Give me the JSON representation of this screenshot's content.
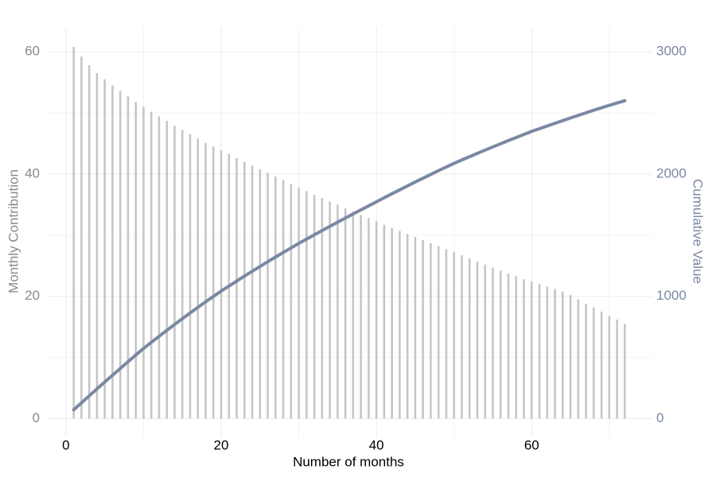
{
  "chart_data": {
    "type": "combo",
    "x_label": "Number of months",
    "y_label": "Monthly Contribution",
    "y2_label": "Cumulative Value",
    "x": [
      1,
      2,
      3,
      4,
      5,
      6,
      7,
      8,
      9,
      10,
      11,
      12,
      13,
      14,
      15,
      16,
      17,
      18,
      19,
      20,
      21,
      22,
      23,
      24,
      25,
      26,
      27,
      28,
      29,
      30,
      31,
      32,
      33,
      34,
      35,
      36,
      37,
      38,
      39,
      40,
      41,
      42,
      43,
      44,
      45,
      46,
      47,
      48,
      49,
      50,
      51,
      52,
      53,
      54,
      55,
      56,
      57,
      58,
      59,
      60,
      61,
      62,
      63,
      64,
      65,
      66,
      67,
      68,
      69,
      70,
      71,
      72
    ],
    "series": [
      {
        "kind": "bar",
        "color": "#c4c4c4",
        "values": [
          60.8,
          59.2,
          57.8,
          56.5,
          55.5,
          54.5,
          53.6,
          52.7,
          51.8,
          51.0,
          50.2,
          49.4,
          48.7,
          47.9,
          47.2,
          46.5,
          45.8,
          45.1,
          44.5,
          43.9,
          43.3,
          42.6,
          42.0,
          41.4,
          40.8,
          40.2,
          39.6,
          39.0,
          38.4,
          37.8,
          37.2,
          36.6,
          36.1,
          35.5,
          35.0,
          34.4,
          33.9,
          33.3,
          32.8,
          32.3,
          31.7,
          31.2,
          30.7,
          30.2,
          29.7,
          29.2,
          28.7,
          28.2,
          27.7,
          27.2,
          26.7,
          26.2,
          25.7,
          25.2,
          24.7,
          24.2,
          23.7,
          23.3,
          22.8,
          22.4,
          22.0,
          21.6,
          21.2,
          20.8,
          20.2,
          19.5,
          18.8,
          18.2,
          17.5,
          16.8,
          16.2,
          15.5
        ]
      },
      {
        "kind": "line",
        "axis": "y2",
        "color": "#7a88a2",
        "values": [
          72,
          129,
          186,
          243,
          299,
          355,
          410,
          465,
          520,
          574,
          624,
          673,
          722,
          770,
          817,
          864,
          910,
          955,
          999,
          1043,
          1084,
          1125,
          1165,
          1205,
          1244,
          1283,
          1321,
          1359,
          1396,
          1433,
          1468,
          1503,
          1538,
          1572,
          1606,
          1640,
          1674,
          1707,
          1740,
          1773,
          1806,
          1839,
          1871,
          1903,
          1935,
          1966,
          1997,
          2028,
          2058,
          2088,
          2115,
          2142,
          2169,
          2196,
          2222,
          2248,
          2274,
          2299,
          2324,
          2349,
          2371,
          2393,
          2415,
          2437,
          2459,
          2480,
          2501,
          2522,
          2542,
          2562,
          2581,
          2600
        ]
      }
    ],
    "xlim": [
      -2.55,
      75.55
    ],
    "xticks": [
      0,
      20,
      40,
      60
    ],
    "ylim": [
      -3.05,
      64.05
    ],
    "yticks": [
      0,
      20,
      40,
      60
    ],
    "y2lim": [
      -152.5,
      3202.5
    ],
    "y2ticks": [
      0,
      1000,
      2000,
      3000
    ],
    "grid": true,
    "y_label_color": "#8a8a8a",
    "y2_label_color": "#7a88a2"
  }
}
